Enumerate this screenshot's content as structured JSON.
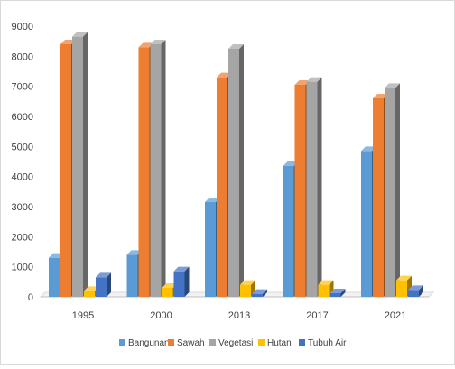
{
  "chart_data": {
    "type": "bar",
    "title": "",
    "xlabel": "",
    "ylabel": "",
    "categories": [
      "1995",
      "2000",
      "2013",
      "2017",
      "2021"
    ],
    "ylim": [
      0,
      9000
    ],
    "yticks": [
      "0",
      "1000",
      "2000",
      "3000",
      "4000",
      "5000",
      "6000",
      "7000",
      "8000",
      "9000"
    ],
    "grid": false,
    "legend_position": "bottom",
    "style": "3d-columns",
    "series": [
      {
        "name": "Bangunan",
        "color": "#5B9BD5",
        "values": [
          1300,
          1400,
          3150,
          4350,
          4850
        ]
      },
      {
        "name": "Sawah",
        "color": "#ED7D31",
        "values": [
          8400,
          8300,
          7300,
          7050,
          6600
        ]
      },
      {
        "name": "Vegetasi",
        "color": "#A5A5A5",
        "values": [
          8650,
          8400,
          8250,
          7150,
          6950
        ]
      },
      {
        "name": "Hutan",
        "color": "#FFC000",
        "values": [
          200,
          300,
          400,
          400,
          550
        ]
      },
      {
        "name": "Tubuh Air",
        "color": "#4472C4",
        "values": [
          650,
          850,
          100,
          120,
          230
        ]
      }
    ]
  }
}
